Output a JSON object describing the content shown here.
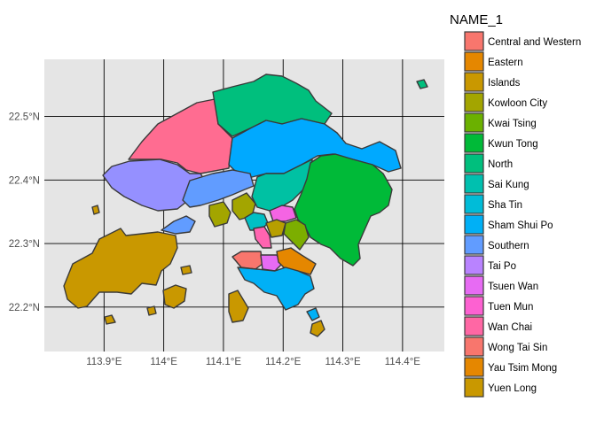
{
  "chart_data": {
    "type": "map",
    "title": "",
    "xlabel": "",
    "ylabel": "",
    "xlim": [
      113.8,
      114.47
    ],
    "ylim": [
      22.13,
      22.59
    ],
    "x_ticks": [
      {
        "value": 113.9,
        "label": "113.9°E"
      },
      {
        "value": 114.0,
        "label": "114°E"
      },
      {
        "value": 114.1,
        "label": "114.1°E"
      },
      {
        "value": 114.2,
        "label": "114.2°E"
      },
      {
        "value": 114.3,
        "label": "114.3°E"
      },
      {
        "value": 114.4,
        "label": "114.4°E"
      }
    ],
    "y_ticks": [
      {
        "value": 22.2,
        "label": "22.2°N"
      },
      {
        "value": 22.3,
        "label": "22.3°N"
      },
      {
        "value": 22.4,
        "label": "22.4°N"
      },
      {
        "value": 22.5,
        "label": "22.5°N"
      }
    ],
    "grid": true,
    "legend": {
      "title": "NAME_1",
      "placement": "right",
      "entries": [
        {
          "name": "Central and Western",
          "color": "#F8766D"
        },
        {
          "name": "Eastern",
          "color": "#E58700"
        },
        {
          "name": "Islands",
          "color": "#C99800"
        },
        {
          "name": "Kowloon City",
          "color": "#A3A500"
        },
        {
          "name": "Kwai Tsing",
          "color": "#6BB100"
        },
        {
          "name": "Kwun Tong",
          "color": "#00BA38"
        },
        {
          "name": "North",
          "color": "#00BF7D"
        },
        {
          "name": "Sai Kung",
          "color": "#00C0AF"
        },
        {
          "name": "Sha Tin",
          "color": "#00BCD8"
        },
        {
          "name": "Sham Shui Po",
          "color": "#00B0F6"
        },
        {
          "name": "Southern",
          "color": "#619CFF"
        },
        {
          "name": "Tai Po",
          "color": "#B983FF"
        },
        {
          "name": "Tsuen Wan",
          "color": "#E76BF3"
        },
        {
          "name": "Tuen Mun",
          "color": "#FD61D1"
        },
        {
          "name": "Wan Chai",
          "color": "#FF67A4"
        },
        {
          "name": "Wong Tai Sin",
          "color": "#F8766D"
        },
        {
          "name": "Yau Tsim Mong",
          "color": "#E58700"
        },
        {
          "name": "Yuen Long",
          "color": "#C99800"
        }
      ]
    }
  }
}
